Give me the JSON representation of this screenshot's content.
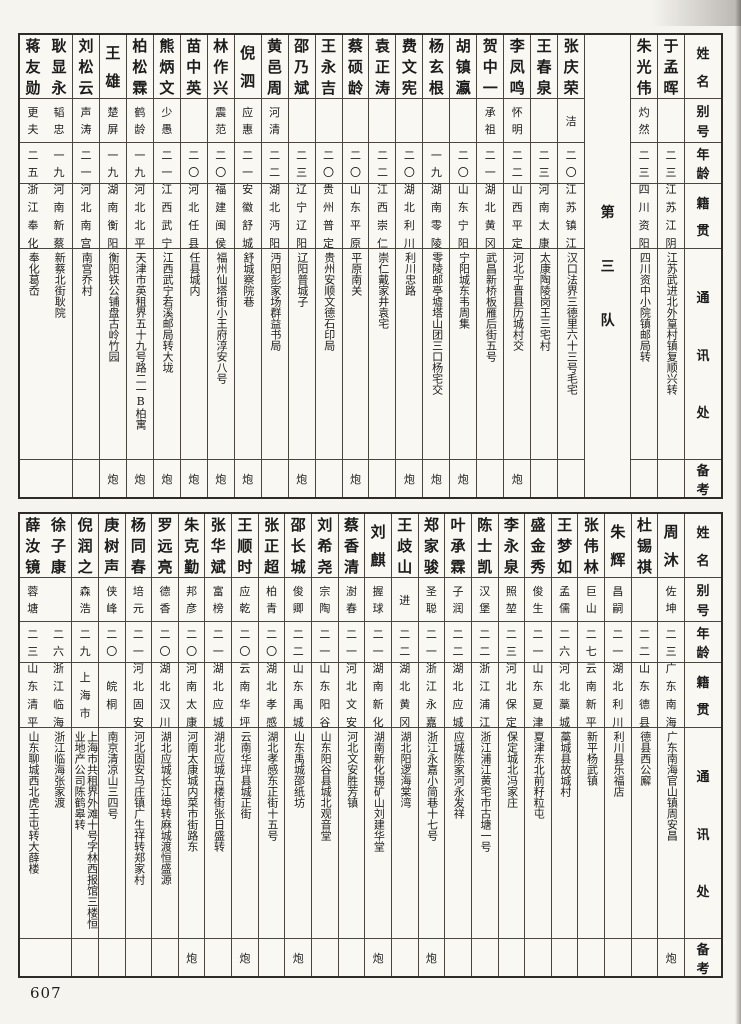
{
  "page_number": "607",
  "colors": {
    "paper": "#faf8f3",
    "ink": "#1c1c1c",
    "grid": "#4a453f"
  },
  "row_labels": [
    "姓名",
    "别号",
    "年龄",
    "籍贯",
    "通讯处",
    "备考"
  ],
  "tables": [
    {
      "id": "top",
      "separator_label": "第三队",
      "separator_before_index": 2,
      "persons": [
        {
          "name": "于孟晖",
          "alias": "",
          "age": "二三",
          "origin": "江苏江阴",
          "address": "江苏武进北外篁村镇复顺兴转",
          "remark": ""
        },
        {
          "name": "朱光伟",
          "alias": "灼然",
          "age": "二三",
          "origin": "四川资阳",
          "address": "四川资中小院镇邮局转",
          "remark": ""
        },
        {
          "name": "张庆荣",
          "alias": "洁",
          "age": "二〇",
          "origin": "江苏镇江",
          "address": "汉口法界三德里六十三号毛宅",
          "remark": ""
        },
        {
          "name": "王春泉",
          "alias": "",
          "age": "二三",
          "origin": "河南太康",
          "address": "太康陶陵岗王三宅村",
          "remark": ""
        },
        {
          "name": "李凤鸣",
          "alias": "怀明",
          "age": "二二",
          "origin": "山西平定",
          "address": "河北宁晋县历城村交",
          "remark": "炮"
        },
        {
          "name": "贺中一",
          "alias": "承祖",
          "age": "二一",
          "origin": "湖北黄冈",
          "address": "武昌新桥板雁后街五号",
          "remark": ""
        },
        {
          "name": "胡镇瀛",
          "alias": "",
          "age": "二〇",
          "origin": "山东宁阳",
          "address": "宁阳城东韦周集",
          "remark": "炮"
        },
        {
          "name": "杨玄根",
          "alias": "",
          "age": "一九",
          "origin": "湖南零陵",
          "address": "零陵邮亭墟塔山团三口杨宅交",
          "remark": "炮"
        },
        {
          "name": "费文宪",
          "alias": "",
          "age": "二〇",
          "origin": "湖北利川",
          "address": "利川忠路",
          "remark": "炮"
        },
        {
          "name": "袁正涛",
          "alias": "",
          "age": "二二",
          "origin": "江西崇仁",
          "address": "崇仁戴家井袁宅",
          "remark": ""
        },
        {
          "name": "蔡硕龄",
          "alias": "",
          "age": "二〇",
          "origin": "山东平原",
          "address": "平原南关",
          "remark": "炮"
        },
        {
          "name": "王永吉",
          "alias": "",
          "age": "二〇",
          "origin": "贵州普定",
          "address": "贵州安顺文德石印局",
          "remark": ""
        },
        {
          "name": "邵乃斌",
          "alias": "",
          "age": "二三",
          "origin": "辽宁辽阳",
          "address": "辽阳普城子",
          "remark": "炮"
        },
        {
          "name": "黄邑周",
          "alias": "河清",
          "age": "二二",
          "origin": "湖北沔阳",
          "address": "沔阳彭家场群益书局",
          "remark": ""
        },
        {
          "name": "倪泗",
          "alias": "应惠",
          "age": "二一",
          "origin": "安徽舒城",
          "address": "舒城察院巷",
          "remark": "炮"
        },
        {
          "name": "林作兴",
          "alias": "震范",
          "age": "二〇",
          "origin": "福建闽侯",
          "address": "福州仙塔街小王府淳安八号",
          "remark": "炮"
        },
        {
          "name": "苗中英",
          "alias": "",
          "age": "二〇",
          "origin": "河北任县",
          "address": "任县城内",
          "remark": "炮"
        },
        {
          "name": "熊炳文",
          "alias": "少愚",
          "age": "二一",
          "origin": "江西武宁",
          "address": "江西武宁若溪邮局转大垅",
          "remark": "炮"
        },
        {
          "name": "柏松霖",
          "alias": "鹤龄",
          "age": "一九",
          "origin": "河北北平",
          "address": "天津市英租界五十九号路二一B柏寓",
          "remark": "炮"
        },
        {
          "name": "王雄",
          "alias": "楚屏",
          "age": "一九",
          "origin": "湖南衡阳",
          "address": "衡阳铁公铺盘古岭竹园",
          "remark": "炮"
        },
        {
          "name": "刘松云",
          "alias": "声涛",
          "age": "二一",
          "origin": "河北南宫",
          "address": "南宫乔村",
          "remark": ""
        },
        {
          "name": "耿显永",
          "alias": "韬忠",
          "age": "一九",
          "origin": "河南新蔡",
          "address": "新蔡北街耿院",
          "remark": ""
        },
        {
          "name": "蒋友勋",
          "alias": "更夫",
          "age": "二五",
          "origin": "浙江奉化",
          "address": "奉化葛岙",
          "remark": ""
        }
      ]
    },
    {
      "id": "bottom",
      "separator_label": "",
      "separator_before_index": -1,
      "persons": [
        {
          "name": "周沐",
          "alias": "佐坤",
          "age": "二三",
          "origin": "广东南海",
          "address": "广东南海官山镇周安昌",
          "remark": "炮"
        },
        {
          "name": "杜锡祺",
          "alias": "",
          "age": "二二",
          "origin": "山东德县",
          "address": "德县西公廨",
          "remark": ""
        },
        {
          "name": "朱辉",
          "alias": "昌嗣",
          "age": "二一",
          "origin": "湖北利川",
          "address": "利川县乐福店",
          "remark": ""
        },
        {
          "name": "张伟林",
          "alias": "巨山",
          "age": "二七",
          "origin": "云南新平",
          "address": "新平杨武镇",
          "remark": ""
        },
        {
          "name": "王梦如",
          "alias": "孟儒",
          "age": "二六",
          "origin": "河北藁城",
          "address": "藁城县故城村",
          "remark": ""
        },
        {
          "name": "盛金秀",
          "alias": "俊生",
          "age": "二一",
          "origin": "山东夏津",
          "address": "夏津东北前籽粒屯",
          "remark": ""
        },
        {
          "name": "李永泉",
          "alias": "照堃",
          "age": "二三",
          "origin": "河北保定",
          "address": "保定城北冯家庄",
          "remark": ""
        },
        {
          "name": "陈士凯",
          "alias": "汉堡",
          "age": "二二",
          "origin": "浙江浦江",
          "address": "浙江浦江黄宅市古塘一号",
          "remark": ""
        },
        {
          "name": "叶承霖",
          "alias": "子润",
          "age": "二二",
          "origin": "湖北应城",
          "address": "应城陈家河永发祥",
          "remark": ""
        },
        {
          "name": "郑家骏",
          "alias": "圣聪",
          "age": "二一",
          "origin": "浙江永嘉",
          "address": "浙江永嘉小简巷十七号",
          "remark": "炮"
        },
        {
          "name": "王歧山",
          "alias": "进",
          "age": "二二",
          "origin": "湖北黄冈",
          "address": "湖北阳逻海棠湾",
          "remark": ""
        },
        {
          "name": "刘麒",
          "alias": "握球",
          "age": "二一",
          "origin": "湖南新化",
          "address": "湖南新化锡矿山刘建华堂",
          "remark": "炮"
        },
        {
          "name": "蔡香清",
          "alias": "澍春",
          "age": "二一",
          "origin": "河北文安",
          "address": "河北文安胜芳镇",
          "remark": ""
        },
        {
          "name": "刘希尧",
          "alias": "宗陶",
          "age": "二一",
          "origin": "山东阳谷",
          "address": "山东阳谷县城北观音堂",
          "remark": ""
        },
        {
          "name": "邵长城",
          "alias": "俊卿",
          "age": "二二",
          "origin": "山东禹城",
          "address": "山东禹城邵纸坊",
          "remark": "炮"
        },
        {
          "name": "张正超",
          "alias": "柏青",
          "age": "二〇",
          "origin": "湖北孝感",
          "address": "湖北孝感东正街十五号",
          "remark": ""
        },
        {
          "name": "王顺时",
          "alias": "应乾",
          "age": "二〇",
          "origin": "云南华坪",
          "address": "云南华坪县城正街",
          "remark": "炮"
        },
        {
          "name": "张华斌",
          "alias": "富榜",
          "age": "二一",
          "origin": "湖北应城",
          "address": "湖北应城古楼街张日盛转",
          "remark": ""
        },
        {
          "name": "朱克勤",
          "alias": "邦彦",
          "age": "二〇",
          "origin": "河南太康",
          "address": "河南太康城内菜市街路东",
          "remark": "炮"
        },
        {
          "name": "罗远亮",
          "alias": "德香",
          "age": "二〇",
          "origin": "湖北汉川",
          "address": "湖北应城长江埠转麻城渡恒盛源",
          "remark": ""
        },
        {
          "name": "杨同春",
          "alias": "培元",
          "age": "二一",
          "origin": "河北固安",
          "address": "河北固安马庄镇广生祥转郑家村",
          "remark": ""
        },
        {
          "name": "庚树声",
          "alias": "侠峰",
          "age": "二〇",
          "origin": "皖桐",
          "address": "南京清凉山三四号",
          "remark": ""
        },
        {
          "name": "倪润之",
          "alias": "森浩",
          "age": "二九",
          "origin": "上海市",
          "address": "上海市共租界外滩十号字林西报馆三楼恒业地产公司陈鹤皋转",
          "remark": ""
        },
        {
          "name": "徐子康",
          "alias": "",
          "age": "二六",
          "origin": "浙江临海",
          "address": "浙江临海张家渡",
          "remark": ""
        },
        {
          "name": "薛汝镜",
          "alias": "蓉塘",
          "age": "二三",
          "origin": "山东清平",
          "address": "山东聊城西北虎王屯转大薛楼",
          "remark": ""
        }
      ]
    }
  ]
}
